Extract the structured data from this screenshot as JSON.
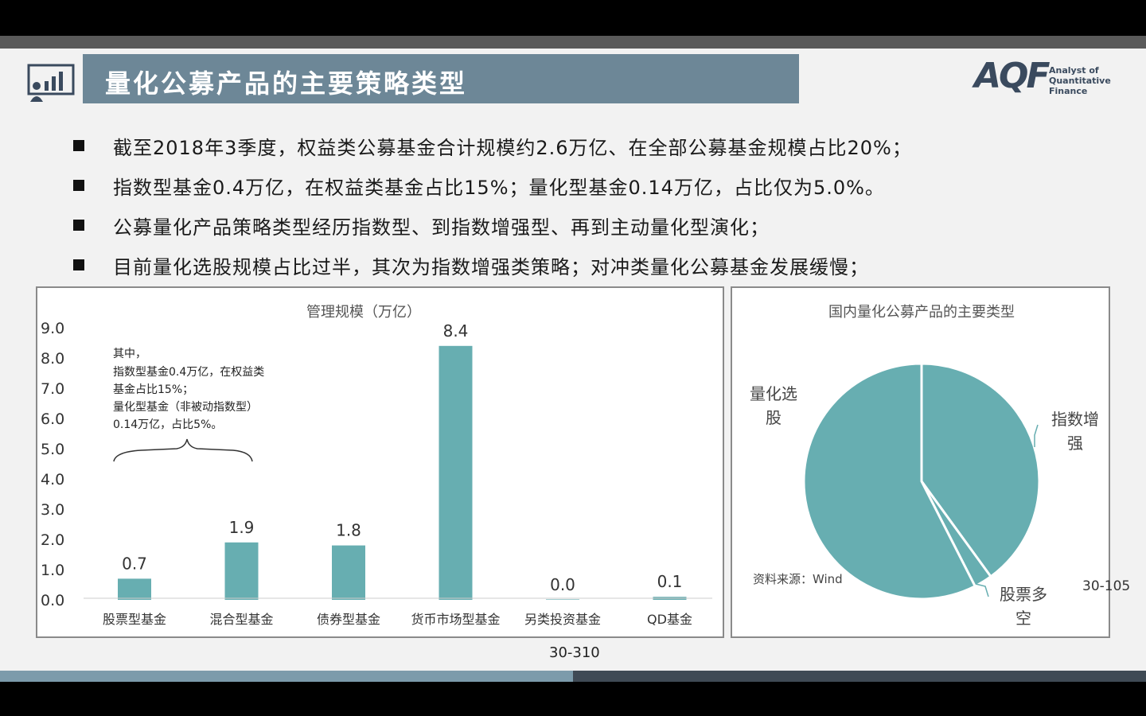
{
  "slide": {
    "title": "量化公募产品的主要策略类型",
    "logo_mark": "AQF",
    "logo_sub_line1": "Analyst of",
    "logo_sub_line2": "Quantitative Finance",
    "page_number": "30-310"
  },
  "bullets": [
    "截至2018年3季度，权益类公募基金合计规模约2.6万亿、在全部公募基金规模占比20%；",
    "指数型基金0.4万亿，在权益类基金占比15%；量化型基金0.14万亿，占比仅为5.0%。",
    "公募量化产品策略类型经历指数型、到指数增强型、再到主动量化型演化；",
    "目前量化选股规模占比过半，其次为指数增强类策略；对冲类量化公募基金发展缓慢；"
  ],
  "colors": {
    "teal": "#67aeb1",
    "title_bar": "#6d8797",
    "logo": "#3a4a5e"
  },
  "chart_data": [
    {
      "type": "bar",
      "title": "管理规模（万亿）",
      "categories": [
        "股票型基金",
        "混合型基金",
        "债券型基金",
        "货币市场型基金",
        "另类投资基金",
        "QD基金"
      ],
      "values": [
        0.7,
        1.9,
        1.8,
        8.4,
        0.0,
        0.1
      ],
      "value_labels": [
        "0.7",
        "1.9",
        "1.8",
        "8.4",
        "0.0",
        "0.1"
      ],
      "yticks": [
        "0.0",
        "1.0",
        "2.0",
        "3.0",
        "4.0",
        "5.0",
        "6.0",
        "7.0",
        "8.0",
        "9.0"
      ],
      "ylim": [
        0,
        9
      ],
      "annotation_lines": [
        "其中，",
        "指数型基金0.4万亿，在权益类",
        "基金占比15%；",
        "量化型基金（非被动指数型）",
        "0.14万亿，占比5%。"
      ],
      "grid": false
    },
    {
      "type": "pie",
      "title": "国内量化公募产品的主要类型",
      "slices": [
        {
          "label": "指数增强",
          "label_lines": [
            "指数增",
            "强"
          ],
          "value": 40
        },
        {
          "label": "股票多空",
          "label_lines": [
            "股票多",
            "空"
          ],
          "value": 2.5
        },
        {
          "label": "量化选股",
          "label_lines": [
            "量化选",
            "股"
          ],
          "value": 57.5
        }
      ],
      "source": "资料来源：Wind",
      "page_ref": "30-105"
    }
  ]
}
